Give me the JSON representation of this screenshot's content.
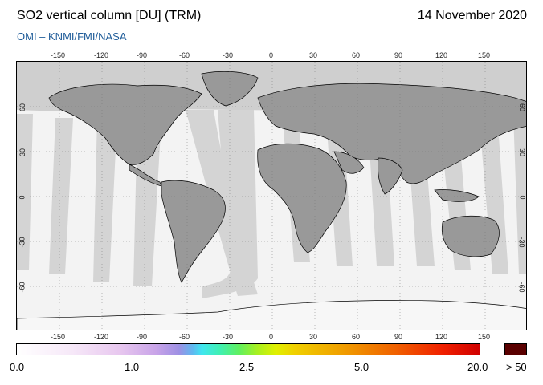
{
  "header": {
    "title": "SO2 vertical column [DU] (TRM)",
    "date": "14 November 2020",
    "credit": "OMI  –  KNMI/FMI/NASA"
  },
  "map": {
    "lon_ticks": [
      "-150",
      "-120",
      "-90",
      "-60",
      "-30",
      "0",
      "30",
      "60",
      "90",
      "120",
      "150"
    ],
    "lat_ticks_left": [
      "60",
      "30",
      "0",
      "-30",
      "-60"
    ],
    "lat_ticks_right": [
      "60",
      "30",
      "0",
      "-30",
      "-60"
    ]
  },
  "colorbar": {
    "labels": [
      "0.0",
      "1.0",
      "2.5",
      "5.0",
      "20.0",
      "> 50"
    ]
  },
  "colors": {
    "land": "#999999",
    "swath": "#d6d6d6",
    "nodata": "#f3f3f3",
    "coast": "#000000"
  }
}
